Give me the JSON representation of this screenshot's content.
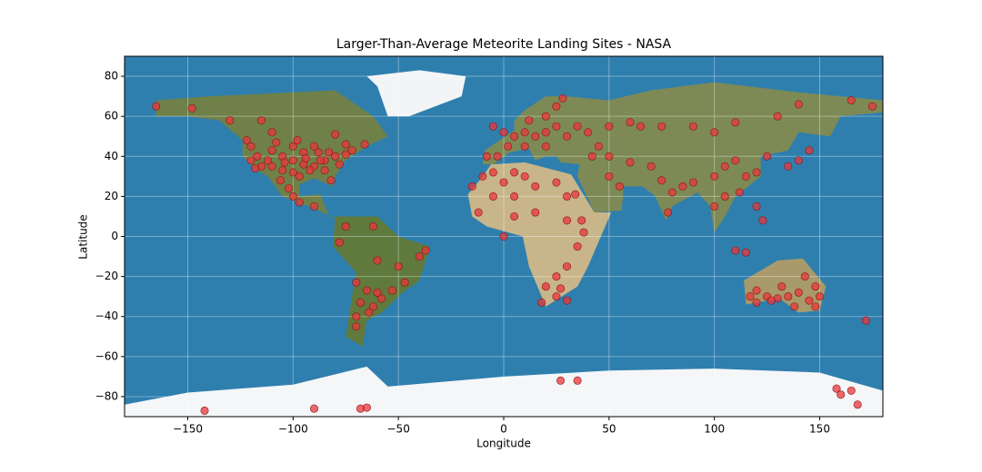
{
  "chart_data": {
    "type": "scatter",
    "title": "Larger-Than-Average Meteorite Landing Sites - NASA",
    "x_label": "Longitude",
    "y_label": "Latitude",
    "color": "#e8373a",
    "xlim": [
      -180,
      180
    ],
    "ylim": [
      -90,
      90
    ],
    "xticks": [
      {
        "value": -150,
        "label": "−150"
      },
      {
        "value": -100,
        "label": "−100"
      },
      {
        "value": -50,
        "label": "−50"
      },
      0,
      50,
      100,
      150
    ],
    "yticks": [
      {
        "value": -80,
        "label": "−80"
      },
      {
        "value": -60,
        "label": "−60"
      },
      {
        "value": -40,
        "label": "−40"
      },
      {
        "value": -20,
        "label": "−20"
      },
      0,
      20,
      40,
      60,
      80
    ],
    "grid": true,
    "x": [
      -120,
      -117,
      -110,
      -105,
      -100,
      -95,
      -90,
      -85,
      -80,
      -75,
      -110,
      -105,
      -100,
      -97,
      -92,
      -88,
      -95,
      -100,
      -115,
      -120,
      -85,
      -82,
      -78,
      -72,
      -90,
      -98,
      -108,
      -112,
      -104,
      -94,
      -87,
      -83,
      -122,
      -118,
      -106,
      -102,
      -100,
      -97,
      -90,
      -110,
      -115,
      -130,
      -165,
      -148,
      -75,
      -66,
      -80,
      -142,
      -90,
      -68,
      -65,
      27,
      35,
      158,
      160,
      165,
      168,
      -47,
      -53,
      -58,
      -65,
      -70,
      -68,
      -64,
      -70,
      -62,
      -50,
      -40,
      -37,
      -60,
      -78,
      -75,
      -62,
      -70,
      -60,
      -8,
      -3,
      2,
      5,
      10,
      15,
      20,
      25,
      30,
      35,
      40,
      50,
      60,
      20,
      25,
      12,
      28,
      0,
      -5,
      10,
      20,
      45,
      65,
      75,
      90,
      100,
      110,
      130,
      140,
      165,
      175,
      -10,
      -5,
      0,
      5,
      10,
      -15,
      -5,
      5,
      15,
      25,
      30,
      34,
      -12,
      5,
      15,
      30,
      38,
      35,
      30,
      25,
      20,
      25,
      30,
      18,
      27,
      0,
      37,
      50,
      55,
      60,
      70,
      75,
      80,
      78,
      85,
      90,
      100,
      105,
      110,
      115,
      120,
      125,
      135,
      140,
      145,
      112,
      105,
      100,
      120,
      123,
      110,
      115,
      42,
      50,
      117,
      120,
      125,
      130,
      135,
      140,
      145,
      148,
      150,
      138,
      120,
      143,
      132,
      148,
      172,
      127
    ],
    "values": [
      45,
      40,
      43,
      40,
      38,
      36,
      35,
      38,
      40,
      41,
      35,
      33,
      32,
      30,
      33,
      42,
      42,
      45,
      35,
      38,
      33,
      28,
      36,
      43,
      45,
      48,
      47,
      38,
      37,
      39,
      38,
      42,
      48,
      34,
      28,
      24,
      20,
      17,
      15,
      52,
      58,
      58,
      65,
      64,
      46,
      46,
      51,
      -87,
      -86,
      -86,
      -85.5,
      -72,
      -72,
      -76,
      -79,
      -77,
      -84,
      -23,
      -27,
      -31,
      -27,
      -23,
      -33,
      -38,
      -45,
      -35,
      -15,
      -10,
      -7,
      -12,
      -3,
      5,
      5,
      -40,
      -28,
      40,
      40,
      45,
      50,
      52,
      50,
      52,
      55,
      50,
      55,
      52,
      55,
      57,
      60,
      65,
      58,
      69,
      52,
      55,
      45,
      45,
      45,
      55,
      55,
      55,
      52,
      57,
      60,
      66,
      68,
      65,
      30,
      32,
      27,
      32,
      30,
      25,
      20,
      20,
      25,
      27,
      20,
      21,
      12,
      10,
      12,
      8,
      2,
      -5,
      -15,
      -20,
      -25,
      -30,
      -32,
      -33,
      -26,
      0,
      8,
      30,
      25,
      37,
      35,
      28,
      22,
      12,
      25,
      27,
      30,
      35,
      38,
      30,
      32,
      40,
      35,
      38,
      43,
      22,
      20,
      15,
      15,
      8,
      -7,
      -8,
      40,
      40,
      -30,
      -27,
      -30,
      -31,
      -30,
      -28,
      -32,
      -35,
      -30,
      -35,
      -33,
      -20,
      -25,
      -25,
      -42,
      -32
    ]
  }
}
